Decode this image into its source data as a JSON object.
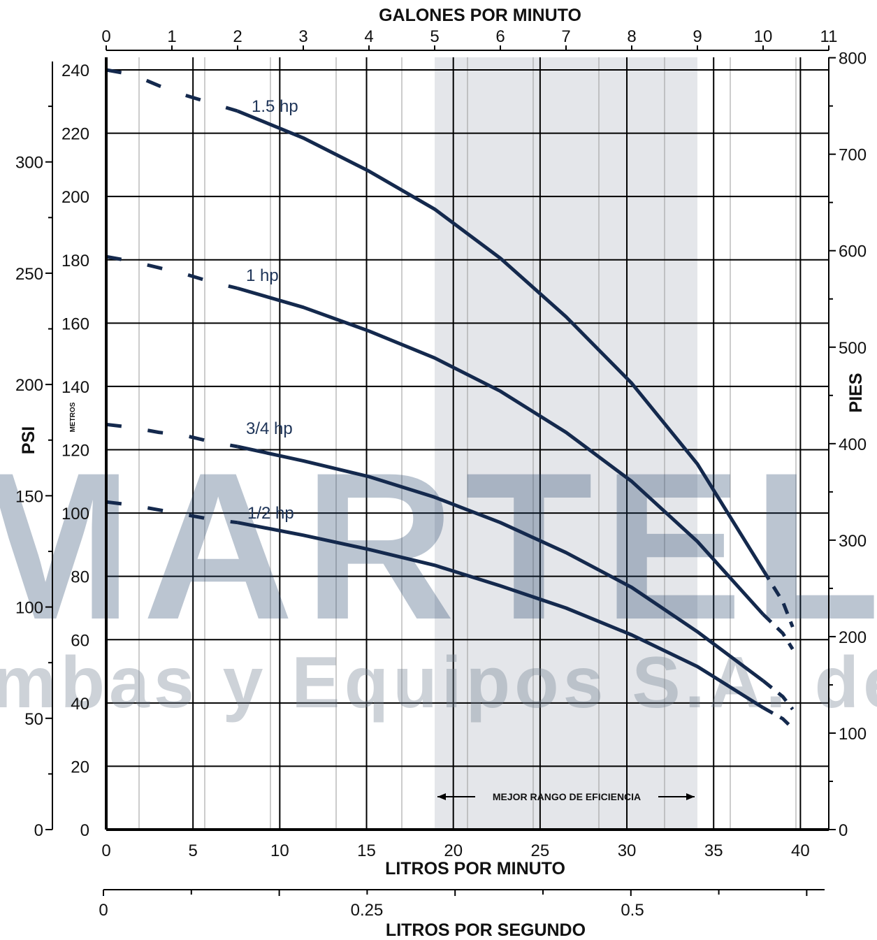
{
  "chart_data": {
    "type": "line",
    "title_top": "GALONES POR MINUTO",
    "title_bottom": "LITROS POR MINUTO",
    "title_seconds": "LITROS POR SEGUNDO",
    "label_psi": "PSI",
    "label_metros": "METROS",
    "label_pies": "PIES",
    "gpm_ticks": [
      "0",
      "1",
      "2",
      "3",
      "4",
      "5",
      "6",
      "7",
      "8",
      "9",
      "10",
      "11"
    ],
    "lpm_ticks": [
      "0",
      "5",
      "10",
      "15",
      "20",
      "25",
      "30",
      "35",
      "40"
    ],
    "lps_ticks": [
      "0",
      "0.25",
      "0.5"
    ],
    "metros_ticks": [
      "0",
      "20",
      "40",
      "60",
      "80",
      "100",
      "120",
      "140",
      "160",
      "180",
      "200",
      "220",
      "240"
    ],
    "psi_ticks": [
      "0",
      "50",
      "100",
      "150",
      "200",
      "250",
      "300"
    ],
    "pies_ticks": [
      "0",
      "100",
      "200",
      "300",
      "400",
      "500",
      "600",
      "700",
      "800"
    ],
    "xlim_gpm": [
      0,
      11
    ],
    "ylim_metros": [
      0,
      240
    ],
    "grid": true,
    "efficiency_range": {
      "label": "MEJOR RANGO DE EFICIENCIA",
      "gpm": [
        5,
        9
      ]
    },
    "series": [
      {
        "name": "1.5 hp",
        "dashed": [
          [
            0,
            240
          ],
          [
            0.4,
            238.5
          ],
          [
            0.8,
            235
          ],
          [
            1.2,
            232
          ],
          [
            1.6,
            229.5
          ],
          [
            2,
            227
          ]
        ],
        "solid": [
          [
            2,
            227
          ],
          [
            3,
            218.5
          ],
          [
            4,
            208
          ],
          [
            5,
            196
          ],
          [
            6,
            180.5
          ],
          [
            7,
            162
          ],
          [
            8,
            141
          ],
          [
            9,
            115.5
          ],
          [
            10,
            82
          ]
        ],
        "dashed_end": [
          [
            10,
            82
          ],
          [
            10.3,
            72
          ],
          [
            10.45,
            64
          ]
        ]
      },
      {
        "name": "1 hp",
        "dashed": [
          [
            0,
            181
          ],
          [
            0.4,
            179.5
          ],
          [
            0.8,
            177.5
          ],
          [
            1.2,
            175.5
          ],
          [
            1.6,
            173
          ],
          [
            2,
            171
          ]
        ],
        "solid": [
          [
            2,
            171
          ],
          [
            3,
            165
          ],
          [
            4,
            157.5
          ],
          [
            5,
            149
          ],
          [
            6,
            138.5
          ],
          [
            7,
            125.5
          ],
          [
            8,
            110
          ],
          [
            9,
            91
          ],
          [
            10,
            68
          ]
        ],
        "dashed_end": [
          [
            10,
            68
          ],
          [
            10.3,
            62
          ],
          [
            10.45,
            57
          ]
        ]
      },
      {
        "name": "3/4 hp",
        "dashed": [
          [
            0,
            128
          ],
          [
            0.4,
            127
          ],
          [
            0.8,
            125.5
          ],
          [
            1.2,
            124.5
          ],
          [
            1.6,
            122.5
          ],
          [
            2,
            121
          ]
        ],
        "solid": [
          [
            2,
            121
          ],
          [
            3,
            116.5
          ],
          [
            4,
            111.5
          ],
          [
            5,
            105
          ],
          [
            6,
            97
          ],
          [
            7,
            87.5
          ],
          [
            8,
            76.5
          ],
          [
            9,
            62.5
          ],
          [
            10,
            47
          ]
        ],
        "dashed_end": [
          [
            10,
            47
          ],
          [
            10.3,
            42
          ],
          [
            10.45,
            38
          ]
        ]
      },
      {
        "name": "1/2 hp",
        "dashed": [
          [
            0,
            103.5
          ],
          [
            0.4,
            102.5
          ],
          [
            0.8,
            101
          ],
          [
            1.2,
            99.5
          ],
          [
            1.6,
            98
          ],
          [
            2,
            97
          ]
        ],
        "solid": [
          [
            2,
            97
          ],
          [
            3,
            93
          ],
          [
            4,
            88.5
          ],
          [
            5,
            83.5
          ],
          [
            6,
            77
          ],
          [
            7,
            70
          ],
          [
            8,
            61.5
          ],
          [
            9,
            51.5
          ],
          [
            10,
            38.5
          ]
        ],
        "dashed_end": [
          [
            10,
            38.5
          ],
          [
            10.3,
            35
          ],
          [
            10.45,
            32
          ]
        ]
      }
    ],
    "colors": {
      "curve": "#14294d",
      "grid": "#000000",
      "minor_grid": "#9a9a9a",
      "band": "#e4e6ea"
    }
  },
  "watermark": {
    "main_text": "MARTELI",
    "sub_text": "mbas y Equipos S.A. de C.V."
  }
}
